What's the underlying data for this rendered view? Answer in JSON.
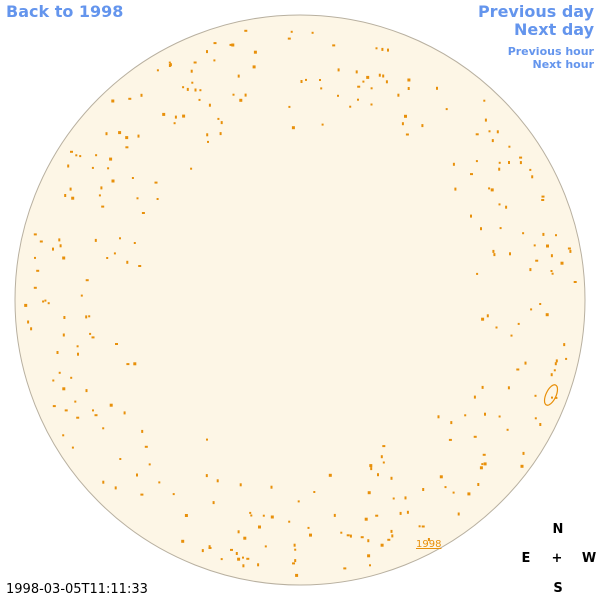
{
  "links": {
    "back": "Back to 1998",
    "previous_day": "Previous day",
    "next_day": "Next day",
    "previous_hour": "Previous hour",
    "next_hour": "Next hour"
  },
  "disk_label": "1998",
  "compass": {
    "north": "N",
    "east": "E",
    "center": "+",
    "west": "W",
    "south": "S"
  },
  "timestamp": "1998-03-05T11:11:33"
}
